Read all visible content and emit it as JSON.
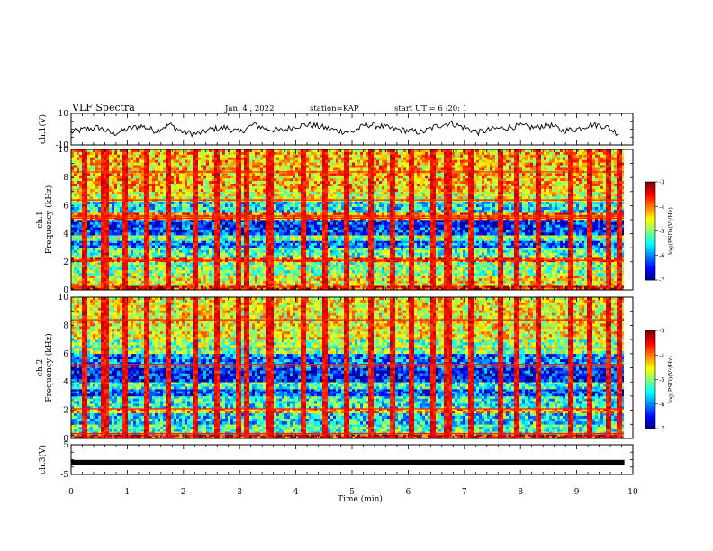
{
  "header": {
    "title": "VLF Spectra",
    "date": "Jan. 4 , 2022",
    "station": "station=KAP",
    "start": "start UT = 6 :20: 1"
  },
  "chart_data": [
    {
      "type": "line",
      "panel": "ch1-waveform",
      "ylabel": "ch.1(V)",
      "ylim": [
        -10,
        10
      ],
      "yticks": [
        "10",
        "-10"
      ],
      "xlim": [
        0,
        10
      ],
      "xlabel": "",
      "series": [
        {
          "color": "#000000",
          "x": [
            0,
            0.25,
            0.5,
            0.75,
            1,
            1.25,
            1.5,
            1.75,
            2,
            2.25,
            2.5,
            2.75,
            3,
            3.25,
            3.5,
            3.75,
            4,
            4.25,
            4.5,
            4.75,
            5,
            5.25,
            5.5,
            5.75,
            6,
            6.25,
            6.5,
            6.75,
            7,
            7.25,
            7.5,
            7.75,
            8,
            8.25,
            8.5,
            8.75,
            9,
            9.25,
            9.5,
            9.75
          ],
          "values": [
            -2,
            0,
            1,
            -3,
            0,
            2,
            -1,
            3,
            -2,
            -3,
            0,
            1,
            -2,
            3,
            0,
            -1,
            2,
            3,
            1,
            -1,
            -2,
            3,
            2,
            0,
            -1,
            -2,
            2,
            4,
            1,
            -2,
            0,
            1,
            2,
            1,
            3,
            -1,
            0,
            3,
            2,
            -3
          ]
        }
      ]
    },
    {
      "type": "heatmap",
      "panel": "ch1-spectrogram",
      "ylabel": "ch.1 Frequency (kHz)",
      "ylim": [
        0,
        10
      ],
      "yticks": [
        "0",
        "2",
        "4",
        "6",
        "8",
        "10"
      ],
      "xlim": [
        0,
        9.85
      ],
      "colorbar": {
        "label": "log(PSD)(V²/Hz)",
        "range": [
          -7,
          -3
        ],
        "ticks": [
          "-3",
          "-4",
          "-5",
          "-6",
          "-7"
        ]
      },
      "bands": [
        {
          "from": 0,
          "to": 0.3,
          "level": -3.5
        },
        {
          "from": 0.3,
          "to": 1.0,
          "level": -4.5
        },
        {
          "from": 1.0,
          "to": 2.0,
          "level": -5.0
        },
        {
          "from": 2.0,
          "to": 2.3,
          "level": -3.8
        },
        {
          "from": 2.3,
          "to": 3.0,
          "level": -5.2
        },
        {
          "from": 3.0,
          "to": 3.5,
          "level": -6.0
        },
        {
          "from": 3.5,
          "to": 3.9,
          "level": -5.0
        },
        {
          "from": 3.9,
          "to": 5.0,
          "level": -6.3
        },
        {
          "from": 5.0,
          "to": 5.5,
          "level": -4.0
        },
        {
          "from": 5.5,
          "to": 6.3,
          "level": -5.5
        },
        {
          "from": 6.3,
          "to": 7.0,
          "level": -4.6
        },
        {
          "from": 7.0,
          "to": 10.0,
          "level": -4.3
        }
      ],
      "bursts_min": [
        0.2,
        0.55,
        0.62,
        0.95,
        1.3,
        1.7,
        2.2,
        2.55,
        2.95,
        3.1,
        3.5,
        3.55,
        4.1,
        4.5,
        4.9,
        5.3,
        5.7,
        6.05,
        6.4,
        6.65,
        6.7,
        7.1,
        7.6,
        7.9,
        8.3,
        8.85,
        9.2,
        9.55,
        9.75
      ]
    },
    {
      "type": "heatmap",
      "panel": "ch2-spectrogram",
      "ylabel": "ch.2 Frequency (kHz)",
      "ylim": [
        0,
        10
      ],
      "yticks": [
        "0",
        "2",
        "4",
        "6",
        "8",
        "10"
      ],
      "xlim": [
        0,
        9.85
      ],
      "colorbar": {
        "label": "log(PSD)(V²/Hz)",
        "range": [
          -7,
          -3
        ],
        "ticks": [
          "-3",
          "-4",
          "-5",
          "-6",
          "-7"
        ]
      },
      "bands": [
        {
          "from": 0,
          "to": 0.3,
          "level": -3.5
        },
        {
          "from": 0.3,
          "to": 1.0,
          "level": -5.2
        },
        {
          "from": 1.0,
          "to": 1.8,
          "level": -5.6
        },
        {
          "from": 1.8,
          "to": 2.1,
          "level": -4.2
        },
        {
          "from": 2.1,
          "to": 3.0,
          "level": -5.4
        },
        {
          "from": 3.0,
          "to": 3.5,
          "level": -6.2
        },
        {
          "from": 3.5,
          "to": 4.0,
          "level": -5.3
        },
        {
          "from": 4.0,
          "to": 5.0,
          "level": -6.4
        },
        {
          "from": 5.0,
          "to": 6.0,
          "level": -6.0
        },
        {
          "from": 6.0,
          "to": 7.0,
          "level": -5.0
        },
        {
          "from": 7.0,
          "to": 10.0,
          "level": -4.5
        }
      ],
      "bursts_min": [
        0.2,
        0.55,
        0.62,
        0.95,
        1.3,
        1.7,
        2.2,
        2.55,
        2.95,
        3.1,
        3.5,
        3.55,
        4.1,
        4.5,
        4.9,
        5.3,
        5.7,
        6.05,
        6.4,
        6.65,
        6.7,
        7.1,
        7.6,
        7.9,
        8.3,
        8.85,
        9.2,
        9.55,
        9.75
      ]
    },
    {
      "type": "line",
      "panel": "ch3-waveform",
      "ylabel": "ch.3(V)",
      "ylim": [
        -5,
        5
      ],
      "yticks": [
        "5",
        "-5"
      ],
      "xlim": [
        0,
        10
      ],
      "xlabel": "Time (min)",
      "xticks": [
        "0",
        "1",
        "2",
        "3",
        "4",
        "5",
        "6",
        "7",
        "8",
        "9",
        "10"
      ],
      "series": [
        {
          "color": "#000000",
          "x": [
            0,
            9.85
          ],
          "values": [
            -1,
            -1
          ]
        }
      ]
    }
  ]
}
